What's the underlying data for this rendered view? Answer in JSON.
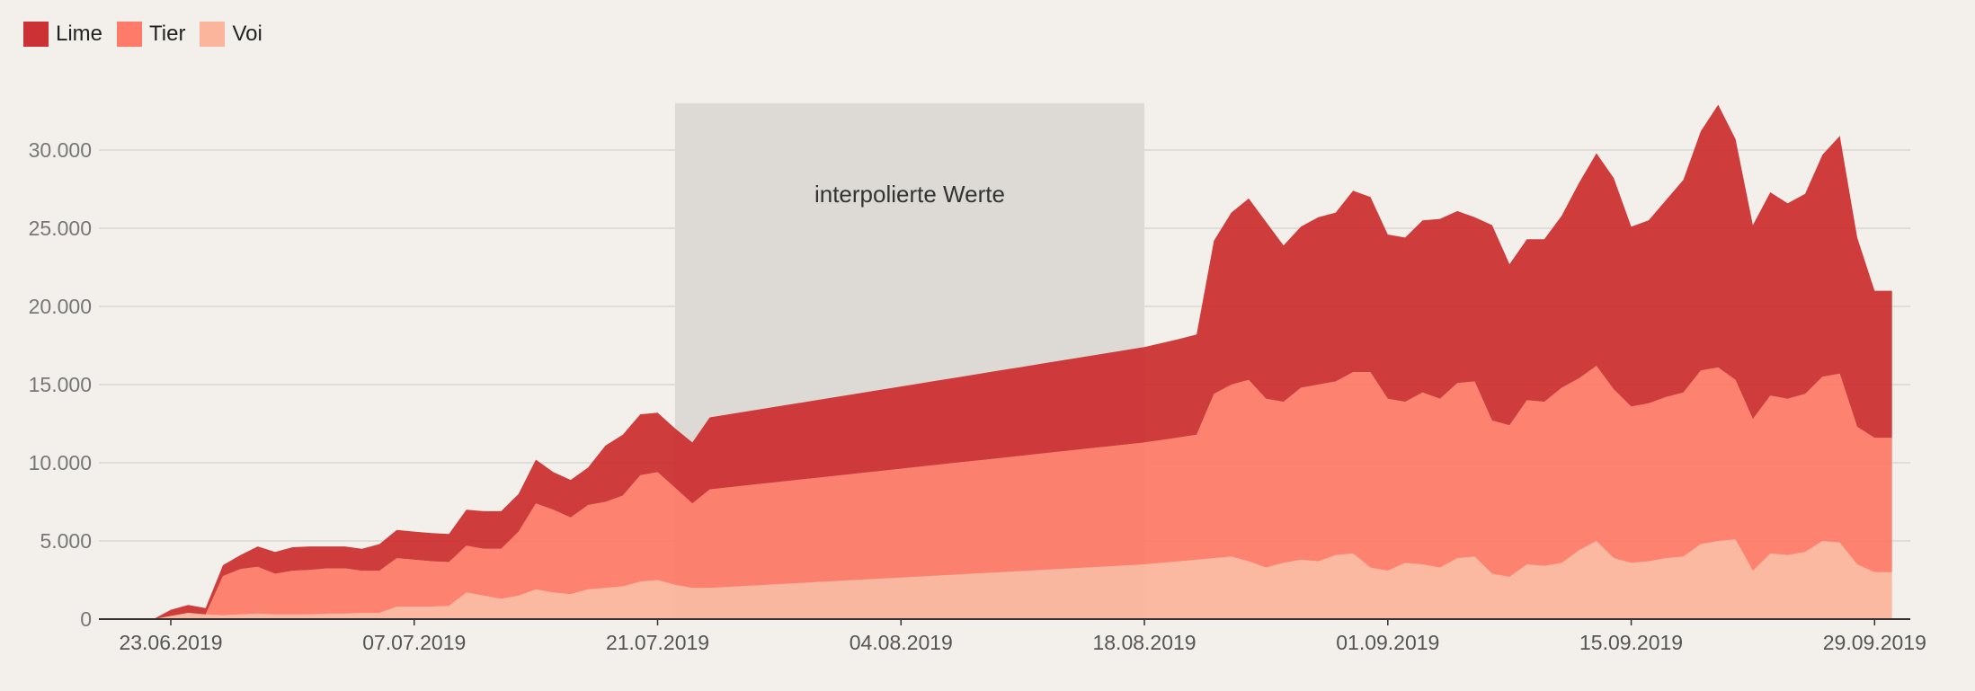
{
  "colors": {
    "background": "#f3f0ec",
    "lime": "#cc3233",
    "tier": "#fd7b68",
    "voi": "#fbb59d",
    "shade": "#dddad6",
    "grid": "#d9d6d2",
    "tick_text": "#777777"
  },
  "chart_data": {
    "type": "area",
    "stacked": true,
    "legend_position": "top-left",
    "grid": true,
    "xlabel": "",
    "ylabel": "",
    "ylim": [
      0,
      33000
    ],
    "y_ticks": [
      0,
      5000,
      10000,
      15000,
      20000,
      25000,
      30000
    ],
    "y_tick_labels": [
      "0",
      "5.000",
      "10.000",
      "15.000",
      "20.000",
      "25.000",
      "30.000"
    ],
    "x_ticks": [
      "2019-06-23",
      "2019-07-07",
      "2019-07-21",
      "2019-08-04",
      "2019-08-18",
      "2019-09-01",
      "2019-09-15",
      "2019-09-29"
    ],
    "x_tick_labels": [
      "23.06.2019",
      "07.07.2019",
      "21.07.2019",
      "04.08.2019",
      "18.08.2019",
      "01.09.2019",
      "15.09.2019",
      "29.09.2019"
    ],
    "annotation": {
      "text": "interpolierte Werte",
      "x_start": "2019-07-22",
      "x_end": "2019-08-18",
      "y_top": 33000
    },
    "x": [
      "2019-06-22",
      "2019-06-23",
      "2019-06-24",
      "2019-06-25",
      "2019-06-26",
      "2019-06-27",
      "2019-06-28",
      "2019-06-29",
      "2019-06-30",
      "2019-07-01",
      "2019-07-02",
      "2019-07-03",
      "2019-07-04",
      "2019-07-05",
      "2019-07-06",
      "2019-07-07",
      "2019-07-08",
      "2019-07-09",
      "2019-07-10",
      "2019-07-11",
      "2019-07-12",
      "2019-07-13",
      "2019-07-14",
      "2019-07-15",
      "2019-07-16",
      "2019-07-17",
      "2019-07-18",
      "2019-07-19",
      "2019-07-20",
      "2019-07-21",
      "2019-07-22",
      "2019-07-23",
      "2019-07-24",
      "2019-07-25",
      "2019-07-26",
      "2019-07-27",
      "2019-07-28",
      "2019-07-29",
      "2019-07-30",
      "2019-07-31",
      "2019-08-01",
      "2019-08-02",
      "2019-08-03",
      "2019-08-04",
      "2019-08-05",
      "2019-08-06",
      "2019-08-07",
      "2019-08-08",
      "2019-08-09",
      "2019-08-10",
      "2019-08-11",
      "2019-08-12",
      "2019-08-13",
      "2019-08-14",
      "2019-08-15",
      "2019-08-16",
      "2019-08-17",
      "2019-08-18",
      "2019-08-19",
      "2019-08-20",
      "2019-08-21",
      "2019-08-22",
      "2019-08-23",
      "2019-08-24",
      "2019-08-25",
      "2019-08-26",
      "2019-08-27",
      "2019-08-28",
      "2019-08-29",
      "2019-08-30",
      "2019-08-31",
      "2019-09-01",
      "2019-09-02",
      "2019-09-03",
      "2019-09-04",
      "2019-09-05",
      "2019-09-06",
      "2019-09-07",
      "2019-09-08",
      "2019-09-09",
      "2019-09-10",
      "2019-09-11",
      "2019-09-12",
      "2019-09-13",
      "2019-09-14",
      "2019-09-15",
      "2019-09-16",
      "2019-09-17",
      "2019-09-18",
      "2019-09-19",
      "2019-09-20",
      "2019-09-21",
      "2019-09-22",
      "2019-09-23",
      "2019-09-24",
      "2019-09-25",
      "2019-09-26",
      "2019-09-27",
      "2019-09-28",
      "2019-09-29",
      "2019-09-30"
    ],
    "series": [
      {
        "name": "Voi",
        "values": [
          0,
          200,
          400,
          300,
          250,
          300,
          350,
          300,
          300,
          300,
          350,
          350,
          400,
          400,
          800,
          800,
          800,
          850,
          1700,
          1500,
          1300,
          1500,
          1900,
          1700,
          1600,
          1900,
          2000,
          2100,
          2400,
          2500,
          2200,
          2000,
          2000,
          2060,
          2120,
          2180,
          2240,
          2300,
          2360,
          2420,
          2480,
          2540,
          2600,
          2660,
          2720,
          2780,
          2840,
          2900,
          2960,
          3020,
          3080,
          3140,
          3200,
          3260,
          3320,
          3380,
          3440,
          3500,
          3600,
          3700,
          3800,
          3900,
          4000,
          3700,
          3300,
          3600,
          3800,
          3700,
          4100,
          4200,
          3300,
          3100,
          3600,
          3500,
          3300,
          3900,
          4000,
          2900,
          2700,
          3500,
          3400,
          3600,
          4400,
          5000,
          3900,
          3600,
          3700,
          3900,
          4000,
          4800,
          5000,
          5100,
          3100,
          4200,
          4100,
          4300,
          5000,
          4900,
          3500,
          3000,
          3000
        ]
      },
      {
        "name": "Tier",
        "values": [
          0,
          0,
          0,
          0,
          2500,
          2900,
          3000,
          2600,
          2800,
          2850,
          2900,
          2900,
          2700,
          2700,
          3100,
          3000,
          2900,
          2800,
          3000,
          3000,
          3200,
          4100,
          5500,
          5300,
          4900,
          5400,
          5500,
          5800,
          6800,
          6900,
          6200,
          5400,
          6300,
          6360,
          6420,
          6480,
          6540,
          6600,
          6660,
          6720,
          6780,
          6840,
          6900,
          6960,
          7020,
          7080,
          7140,
          7200,
          7260,
          7320,
          7380,
          7440,
          7500,
          7560,
          7620,
          7680,
          7740,
          7800,
          7860,
          7920,
          8000,
          10500,
          11000,
          11600,
          10800,
          10300,
          11000,
          11300,
          11100,
          11600,
          12500,
          11000,
          10300,
          11000,
          10800,
          11200,
          11200,
          9800,
          9700,
          10500,
          10500,
          11200,
          11000,
          11200,
          10800,
          10000,
          10100,
          10300,
          10500,
          11100,
          11100,
          10200,
          9700,
          10100,
          10000,
          10100,
          10500,
          10800,
          8800,
          8600,
          8600
        ]
      },
      {
        "name": "Lime",
        "values": [
          0,
          400,
          500,
          400,
          700,
          900,
          1300,
          1400,
          1500,
          1500,
          1400,
          1400,
          1400,
          1700,
          1800,
          1800,
          1800,
          1800,
          2300,
          2400,
          2400,
          2400,
          2800,
          2400,
          2400,
          2400,
          3600,
          3900,
          3900,
          3800,
          3800,
          3900,
          4600,
          4660,
          4720,
          4780,
          4840,
          4900,
          4960,
          5020,
          5080,
          5140,
          5200,
          5260,
          5320,
          5380,
          5440,
          5500,
          5560,
          5620,
          5680,
          5740,
          5800,
          5860,
          5920,
          5980,
          6040,
          6100,
          6200,
          6300,
          6400,
          9800,
          11000,
          11600,
          11300,
          10000,
          10300,
          10700,
          10800,
          11600,
          11200,
          10500,
          10500,
          11000,
          11500,
          11000,
          10500,
          12500,
          10300,
          10300,
          10400,
          11000,
          12500,
          13600,
          13500,
          11500,
          11700,
          12600,
          13600,
          15300,
          16800,
          15400,
          12400,
          13000,
          12500,
          12800,
          14200,
          15200,
          12100,
          9400,
          9400
        ]
      }
    ]
  }
}
